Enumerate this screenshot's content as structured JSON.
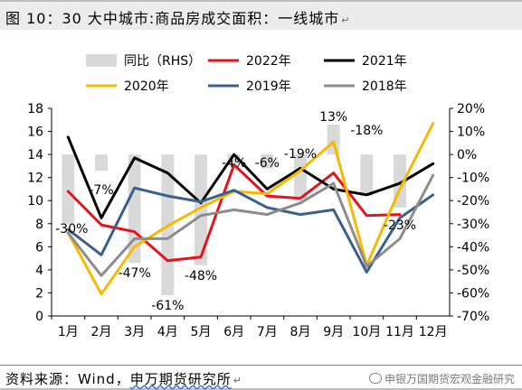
{
  "title": "图 10：30 大中城市:商品房成交面积：一线城市",
  "title_mark": "↵",
  "source_prefix": "资料来源：Wind，",
  "source_suffix": "申万期货研究所",
  "source_mark": "↵",
  "watermark": "申银万国期货宏观金融研究",
  "chart_data": {
    "type": "bar+line",
    "categories": [
      "1月",
      "2月",
      "3月",
      "4月",
      "5月",
      "6月",
      "7月",
      "8月",
      "9月",
      "10月",
      "11月",
      "12月"
    ],
    "y_left": {
      "lim": [
        0,
        18
      ],
      "ticks": [
        "0",
        "2",
        "4",
        "6",
        "8",
        "10",
        "12",
        "14",
        "16",
        "18"
      ]
    },
    "y_right": {
      "lim": [
        -70,
        20
      ],
      "ticks": [
        "-70%",
        "-60%",
        "-50%",
        "-40%",
        "-30%",
        "-20%",
        "-10%",
        "0%",
        "10%",
        "20%"
      ]
    },
    "legend": [
      {
        "name": "同比（RHS）",
        "color": "#d9d9d9",
        "kind": "bar"
      },
      {
        "name": "2022年",
        "color": "#e3141c",
        "kind": "line"
      },
      {
        "name": "2021年",
        "color": "#000000",
        "kind": "line"
      },
      {
        "name": "2020年",
        "color": "#f6b900",
        "kind": "line"
      },
      {
        "name": "2019年",
        "color": "#3b5f8d",
        "kind": "line"
      },
      {
        "name": "2018年",
        "color": "#8c8c8c",
        "kind": "line"
      }
    ],
    "bars": {
      "name": "同比（RHS）",
      "color": "#d9d9d9",
      "values": [
        -30,
        -7,
        -47,
        -61,
        -48,
        -4,
        -6,
        -19,
        13,
        -18,
        -23,
        null
      ]
    },
    "bar_labels": [
      "-30%",
      "-7%",
      "-47%",
      "-61%",
      "-48%",
      "-4%",
      "-6%",
      "-19%",
      "13%",
      "-18%",
      "-23%",
      ""
    ],
    "series": [
      {
        "name": "2022年",
        "color": "#e3141c",
        "values": [
          10.8,
          7.9,
          7.3,
          4.8,
          5.1,
          13.1,
          10.4,
          10.2,
          12.4,
          8.7,
          8.8,
          null
        ]
      },
      {
        "name": "2021年",
        "color": "#000000",
        "values": [
          15.5,
          8.5,
          13.7,
          12.4,
          9.8,
          14.0,
          11.0,
          12.8,
          11.0,
          10.5,
          11.5,
          13.2
        ]
      },
      {
        "name": "2020年",
        "color": "#f6b900",
        "values": [
          7.2,
          1.9,
          6.0,
          7.8,
          9.4,
          10.8,
          10.6,
          12.6,
          15.1,
          4.4,
          11.0,
          16.7
        ]
      },
      {
        "name": "2019年",
        "color": "#3b5f8d",
        "values": [
          7.5,
          5.3,
          11.1,
          10.4,
          9.9,
          10.9,
          9.4,
          8.8,
          9.2,
          3.8,
          8.5,
          10.5
        ]
      },
      {
        "name": "2018年",
        "color": "#8c8c8c",
        "values": [
          7.2,
          3.5,
          6.7,
          6.7,
          8.7,
          9.2,
          8.8,
          9.8,
          11.5,
          4.3,
          6.7,
          12.2
        ]
      }
    ]
  }
}
